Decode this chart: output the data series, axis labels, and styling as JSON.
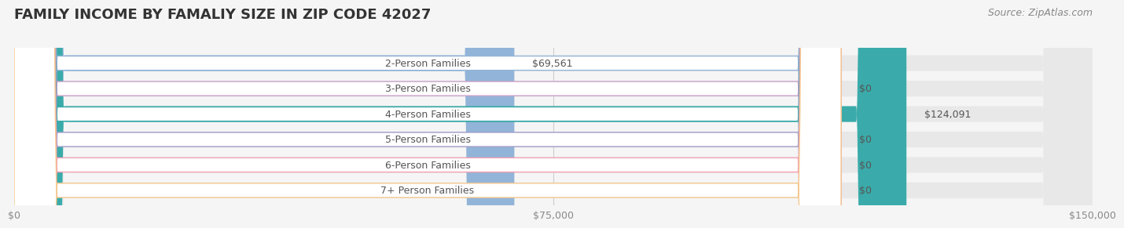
{
  "title": "FAMILY INCOME BY FAMALIY SIZE IN ZIP CODE 42027",
  "source": "Source: ZipAtlas.com",
  "categories": [
    "2-Person Families",
    "3-Person Families",
    "4-Person Families",
    "5-Person Families",
    "6-Person Families",
    "7+ Person Families"
  ],
  "values": [
    69561,
    0,
    124091,
    0,
    0,
    0
  ],
  "bar_colors": [
    "#92b4d8",
    "#c9a0c8",
    "#3aabaa",
    "#a09cc8",
    "#f4a0b4",
    "#f4c890"
  ],
  "value_labels": [
    "$69,561",
    "$0",
    "$124,091",
    "$0",
    "$0",
    "$0"
  ],
  "xlim": [
    0,
    150000
  ],
  "xticks": [
    0,
    75000,
    150000
  ],
  "xticklabels": [
    "$0",
    "$75,000",
    "$150,000"
  ],
  "bg_color": "#f5f5f5",
  "bar_bg_color": "#e8e8e8",
  "title_fontsize": 13,
  "source_fontsize": 9,
  "label_fontsize": 9,
  "value_fontsize": 9
}
